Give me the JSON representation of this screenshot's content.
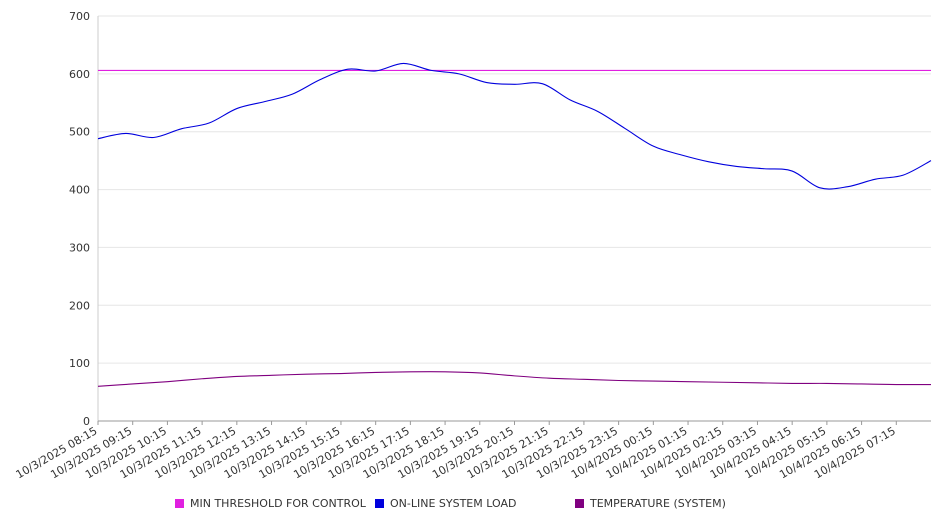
{
  "chart_data": {
    "type": "line",
    "title": "",
    "xlabel": "",
    "ylabel": "",
    "ylim": [
      0,
      700
    ],
    "yticks": [
      0,
      100,
      200,
      300,
      400,
      500,
      600,
      700
    ],
    "xtick_labels": [
      "10/3/2025 08:15",
      "10/3/2025 09:15",
      "10/3/2025 10:15",
      "10/3/2025 11:15",
      "10/3/2025 12:15",
      "10/3/2025 13:15",
      "10/3/2025 14:15",
      "10/3/2025 15:15",
      "10/3/2025 16:15",
      "10/3/2025 17:15",
      "10/3/2025 18:15",
      "10/3/2025 19:15",
      "10/3/2025 20:15",
      "10/3/2025 21:15",
      "10/3/2025 22:15",
      "10/3/2025 23:15",
      "10/4/2025 00:15",
      "10/4/2025 01:15",
      "10/4/2025 02:15",
      "10/4/2025 03:15",
      "10/4/2025 04:15",
      "10/4/2025 05:15",
      "10/4/2025 06:15",
      "10/4/2025 07:15"
    ],
    "x_start": "10/3/2025 08:15",
    "x_end": "10/4/2025 08:15",
    "grid": true,
    "legend_position": "bottom",
    "series": [
      {
        "name": "MIN THRESHOLD FOR CONTROL",
        "color": "#e020e0",
        "values": [
          606,
          606,
          606,
          606,
          606,
          606,
          606,
          606,
          606,
          606,
          606,
          606,
          606,
          606,
          606,
          606,
          606,
          606,
          606,
          606,
          606,
          606,
          606,
          606,
          606
        ]
      },
      {
        "name": "ON-LINE SYSTEM LOAD",
        "color": "#0000dd",
        "values": [
          488,
          497,
          490,
          505,
          515,
          540,
          552,
          565,
          590,
          608,
          605,
          618,
          606,
          600,
          585,
          582,
          583,
          555,
          535,
          505,
          475,
          460,
          448,
          440,
          436,
          432,
          403,
          405,
          418,
          425,
          450
        ]
      },
      {
        "name": "TEMPERATURE (SYSTEM)",
        "color": "#800080",
        "values": [
          60,
          64,
          68,
          73,
          77,
          79,
          81,
          82,
          84,
          85,
          85,
          83,
          78,
          74,
          72,
          70,
          69,
          68,
          67,
          66,
          65,
          65,
          64,
          63,
          63
        ]
      }
    ]
  }
}
